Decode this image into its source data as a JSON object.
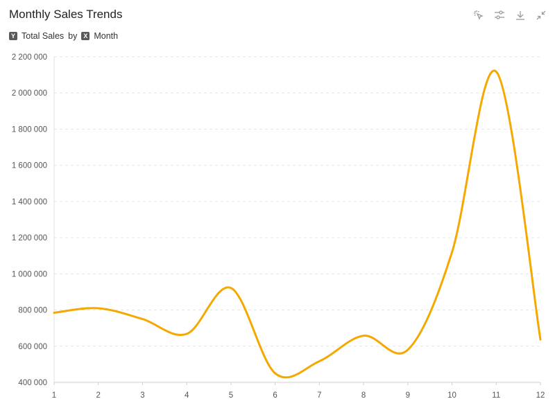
{
  "header": {
    "title": "Monthly Sales Trends",
    "tools": [
      {
        "name": "select-icon"
      },
      {
        "name": "filter-sliders-icon"
      },
      {
        "name": "download-icon"
      },
      {
        "name": "collapse-icon"
      }
    ]
  },
  "legend": {
    "y_badge": "Y",
    "y_text": "Total Sales",
    "by_text": "by",
    "x_badge": "X",
    "x_text": "Month"
  },
  "chart_data": {
    "type": "line",
    "title": "Monthly Sales Trends",
    "x": [
      1,
      2,
      3,
      4,
      5,
      6,
      7,
      8,
      9,
      10,
      11,
      12
    ],
    "series": [
      {
        "values": [
          785000,
          810000,
          750000,
          668000,
          922000,
          450000,
          517000,
          658000,
          580000,
          1120000,
          2118000,
          637000
        ]
      }
    ],
    "ylim": [
      400000,
      2200000
    ],
    "yticks": [
      400000,
      600000,
      800000,
      1000000,
      1200000,
      1400000,
      1600000,
      1800000,
      2000000,
      2200000
    ],
    "ytick_labels": [
      "400 000",
      "600 000",
      "800 000",
      "1 000 000",
      "1 200 000",
      "1 400 000",
      "1 600 000",
      "1 800 000",
      "2 000 000",
      "2 200 000"
    ],
    "xtick_labels": [
      "1",
      "2",
      "3",
      "4",
      "5",
      "6",
      "7",
      "8",
      "9",
      "10",
      "11",
      "12"
    ],
    "line_color": "#F5A800",
    "grid": true
  }
}
